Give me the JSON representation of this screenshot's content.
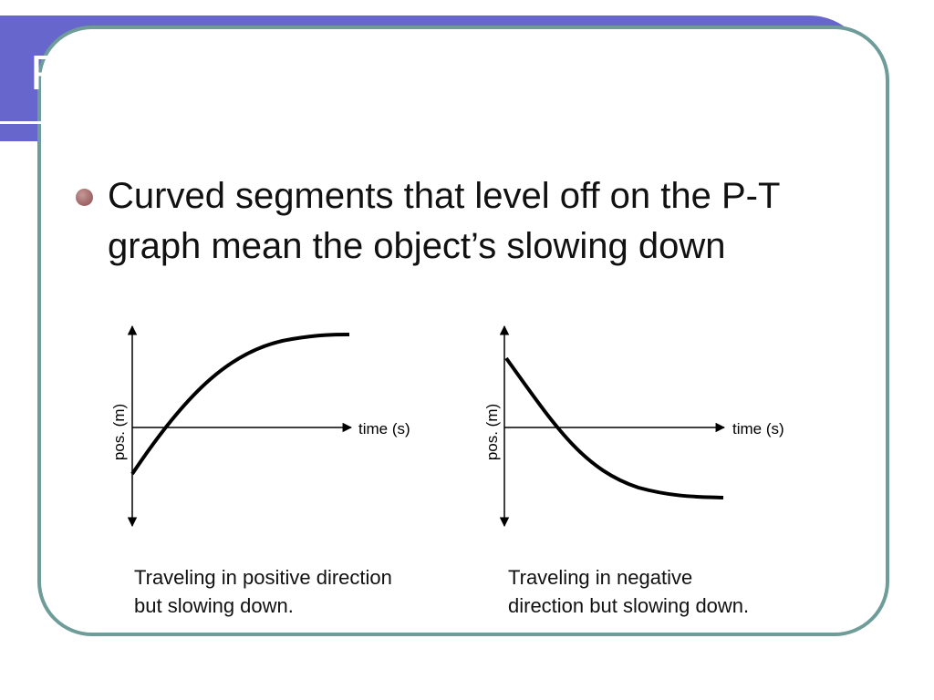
{
  "slide": {
    "title": "Position-Time Graphs",
    "bullet": "Curved segments that level off on the P-T graph mean the object’s slowing down",
    "colors": {
      "title_bar": "#6666cc",
      "frame_border": "#6e9c99",
      "bullet_dot": "#a46d6d"
    }
  },
  "graphs": [
    {
      "ylabel": "pos. (m)",
      "xlabel": "time (s)",
      "caption_line1": "Traveling in positive direction",
      "caption_line2": "but slowing down."
    },
    {
      "ylabel": "pos. (m)",
      "xlabel": "time (s)",
      "caption_line1": "Traveling in negative",
      "caption_line2": "direction but slowing down."
    }
  ]
}
